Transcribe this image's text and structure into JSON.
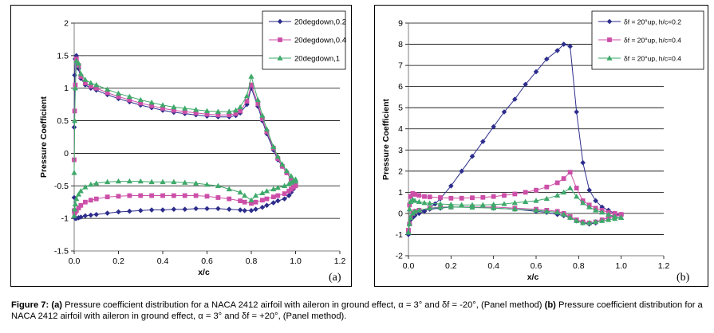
{
  "caption": {
    "label": "Figure 7:",
    "a_tag": "(a)",
    "a_text": " Pressure coefficient distribution for a NACA 2412 airfoil with aileron in ground effect, α = 3° and δf = -20°, (Panel method) ",
    "b_tag": "(b)",
    "b_text": " Pressure coefficient distribution for a NACA 2412 airfoil with aileron in ground effect, α = 3° and δf = +20°, (Panel method)."
  },
  "chart_data": [
    {
      "type": "line",
      "panel_label": "(a)",
      "xlabel": "x/c",
      "ylabel": "Pressure Coefficient",
      "xlim": [
        0,
        1.2
      ],
      "ylim": [
        -1.5,
        2
      ],
      "xticks": [
        "0.0",
        "0.2",
        "0.4",
        "0.6",
        "0.8",
        "1.0",
        "1.2"
      ],
      "yticks": [
        "-1.5",
        "-1",
        "-0.5",
        "0",
        "0.5",
        "1",
        "1.5",
        "2"
      ],
      "xtick_values": [
        0,
        0.2,
        0.4,
        0.6,
        0.8,
        1.0,
        1.2
      ],
      "ytick_values": [
        -1.5,
        -1,
        -0.5,
        0,
        0.5,
        1,
        1.5,
        2
      ],
      "grid": "horizontal",
      "legend": "top-right",
      "series": [
        {
          "name": "20degdown,0.2",
          "color": "#2d2d8c",
          "marker": "diamond",
          "x": [
            0.0,
            0.002,
            0.005,
            0.01,
            0.02,
            0.03,
            0.05,
            0.075,
            0.1,
            0.15,
            0.2,
            0.25,
            0.3,
            0.35,
            0.4,
            0.45,
            0.5,
            0.55,
            0.6,
            0.65,
            0.7,
            0.73,
            0.75,
            0.78,
            0.8,
            0.83,
            0.85,
            0.87,
            0.9,
            0.92,
            0.94,
            0.96,
            0.98,
            1.0,
            1.0,
            0.99,
            0.98,
            0.97,
            0.95,
            0.92,
            0.9,
            0.87,
            0.85,
            0.82,
            0.8,
            0.77,
            0.75,
            0.7,
            0.65,
            0.6,
            0.55,
            0.5,
            0.45,
            0.4,
            0.35,
            0.3,
            0.25,
            0.2,
            0.15,
            0.1,
            0.075,
            0.05,
            0.03,
            0.02,
            0.01,
            0.005,
            0.002,
            0.0
          ],
          "y": [
            0.4,
            1.2,
            1.45,
            1.5,
            1.3,
            1.15,
            1.05,
            1.0,
            0.97,
            0.9,
            0.84,
            0.79,
            0.74,
            0.7,
            0.66,
            0.63,
            0.61,
            0.59,
            0.57,
            0.56,
            0.56,
            0.58,
            0.62,
            0.75,
            1.0,
            0.72,
            0.5,
            0.3,
            0.05,
            -0.1,
            -0.2,
            -0.3,
            -0.4,
            -0.5,
            -0.48,
            -0.55,
            -0.6,
            -0.65,
            -0.7,
            -0.73,
            -0.76,
            -0.8,
            -0.83,
            -0.86,
            -0.88,
            -0.88,
            -0.87,
            -0.86,
            -0.85,
            -0.85,
            -0.85,
            -0.86,
            -0.86,
            -0.87,
            -0.87,
            -0.88,
            -0.89,
            -0.9,
            -0.92,
            -0.94,
            -0.95,
            -0.96,
            -0.98,
            -0.99,
            -1.0,
            -1.0,
            -0.98,
            -0.68
          ]
        },
        {
          "name": "20degdown,0.4",
          "color": "#cc4fa8",
          "marker": "square",
          "x": [
            0.0,
            0.002,
            0.005,
            0.01,
            0.02,
            0.03,
            0.05,
            0.075,
            0.1,
            0.15,
            0.2,
            0.25,
            0.3,
            0.35,
            0.4,
            0.45,
            0.5,
            0.55,
            0.6,
            0.65,
            0.7,
            0.73,
            0.75,
            0.78,
            0.8,
            0.83,
            0.85,
            0.87,
            0.9,
            0.92,
            0.94,
            0.96,
            0.98,
            1.0,
            1.0,
            0.99,
            0.98,
            0.97,
            0.95,
            0.92,
            0.9,
            0.87,
            0.85,
            0.82,
            0.8,
            0.77,
            0.75,
            0.7,
            0.65,
            0.6,
            0.55,
            0.5,
            0.45,
            0.4,
            0.35,
            0.3,
            0.25,
            0.2,
            0.15,
            0.1,
            0.075,
            0.05,
            0.03,
            0.02,
            0.01,
            0.005,
            0.002,
            0.0
          ],
          "y": [
            -0.1,
            0.65,
            1.05,
            1.45,
            1.35,
            1.18,
            1.08,
            1.03,
            1.0,
            0.93,
            0.87,
            0.82,
            0.77,
            0.73,
            0.69,
            0.66,
            0.64,
            0.62,
            0.6,
            0.59,
            0.59,
            0.61,
            0.65,
            0.8,
            1.05,
            0.76,
            0.53,
            0.33,
            0.08,
            -0.08,
            -0.2,
            -0.3,
            -0.4,
            -0.5,
            -0.47,
            -0.52,
            -0.55,
            -0.58,
            -0.62,
            -0.65,
            -0.67,
            -0.7,
            -0.72,
            -0.75,
            -0.77,
            -0.75,
            -0.73,
            -0.7,
            -0.68,
            -0.66,
            -0.65,
            -0.65,
            -0.65,
            -0.65,
            -0.65,
            -0.65,
            -0.65,
            -0.66,
            -0.67,
            -0.7,
            -0.72,
            -0.75,
            -0.8,
            -0.84,
            -0.88,
            -0.9,
            -0.92,
            -0.88
          ]
        },
        {
          "name": "20degdown,1",
          "color": "#3ea96a",
          "marker": "triangle",
          "x": [
            0.0,
            0.002,
            0.005,
            0.01,
            0.02,
            0.03,
            0.05,
            0.075,
            0.1,
            0.15,
            0.2,
            0.25,
            0.3,
            0.35,
            0.4,
            0.45,
            0.5,
            0.55,
            0.6,
            0.65,
            0.7,
            0.73,
            0.75,
            0.78,
            0.8,
            0.83,
            0.85,
            0.87,
            0.9,
            0.92,
            0.94,
            0.96,
            0.98,
            1.0,
            1.0,
            0.99,
            0.98,
            0.97,
            0.95,
            0.92,
            0.9,
            0.87,
            0.85,
            0.82,
            0.8,
            0.77,
            0.75,
            0.7,
            0.65,
            0.6,
            0.55,
            0.5,
            0.45,
            0.4,
            0.35,
            0.3,
            0.25,
            0.2,
            0.15,
            0.1,
            0.075,
            0.05,
            0.03,
            0.02,
            0.01,
            0.005,
            0.002,
            0.0
          ],
          "y": [
            -0.3,
            0.5,
            1.0,
            1.42,
            1.38,
            1.22,
            1.13,
            1.08,
            1.05,
            0.98,
            0.92,
            0.87,
            0.82,
            0.78,
            0.74,
            0.71,
            0.69,
            0.67,
            0.65,
            0.64,
            0.64,
            0.66,
            0.71,
            0.88,
            1.18,
            0.82,
            0.58,
            0.37,
            0.1,
            -0.05,
            -0.17,
            -0.27,
            -0.35,
            -0.43,
            -0.4,
            -0.43,
            -0.45,
            -0.47,
            -0.5,
            -0.53,
            -0.55,
            -0.58,
            -0.61,
            -0.65,
            -0.72,
            -0.65,
            -0.6,
            -0.55,
            -0.5,
            -0.48,
            -0.46,
            -0.45,
            -0.44,
            -0.44,
            -0.44,
            -0.43,
            -0.43,
            -0.43,
            -0.44,
            -0.46,
            -0.48,
            -0.52,
            -0.58,
            -0.63,
            -0.7,
            -0.78,
            -0.86,
            -0.96
          ]
        }
      ]
    },
    {
      "type": "line",
      "panel_label": "(b)",
      "xlabel": "x/c",
      "ylabel": "Pressure Coefficient",
      "xlim": [
        0,
        1.2
      ],
      "ylim": [
        -2,
        9
      ],
      "xticks": [
        "0.0",
        "0.2",
        "0.4",
        "0.6",
        "0.8",
        "1.0",
        "1.2"
      ],
      "yticks": [
        "-2",
        "-1",
        "0",
        "1",
        "2",
        "3",
        "4",
        "5",
        "6",
        "7",
        "8",
        "9"
      ],
      "xtick_values": [
        0,
        0.2,
        0.4,
        0.6,
        0.8,
        1.0,
        1.2
      ],
      "ytick_values": [
        -2,
        -1,
        0,
        1,
        2,
        3,
        4,
        5,
        6,
        7,
        8,
        9
      ],
      "grid": "horizontal",
      "legend": "top-right",
      "series": [
        {
          "name": "δf = 20°up, h/c=0.2",
          "color": "#2d2d8c",
          "marker": "diamond",
          "x": [
            0.0,
            0.005,
            0.01,
            0.02,
            0.03,
            0.05,
            0.075,
            0.1,
            0.125,
            0.15,
            0.2,
            0.25,
            0.3,
            0.35,
            0.4,
            0.45,
            0.5,
            0.55,
            0.6,
            0.65,
            0.7,
            0.73,
            0.76,
            0.79,
            0.82,
            0.85,
            0.88,
            0.91,
            0.94,
            0.97,
            1.0,
            1.0,
            0.97,
            0.94,
            0.91,
            0.88,
            0.85,
            0.82,
            0.79,
            0.76,
            0.73,
            0.7,
            0.65,
            0.6,
            0.5,
            0.4,
            0.3,
            0.2,
            0.15,
            0.1,
            0.05,
            0.03,
            0.02,
            0.01,
            0.005,
            0.0
          ],
          "y": [
            -1.0,
            -0.5,
            -0.3,
            -0.2,
            -0.1,
            0.0,
            0.1,
            0.25,
            0.45,
            0.7,
            1.3,
            2.0,
            2.7,
            3.4,
            4.1,
            4.8,
            5.4,
            6.1,
            6.7,
            7.3,
            7.7,
            8.0,
            7.9,
            4.8,
            2.4,
            1.1,
            0.6,
            0.3,
            0.15,
            0.0,
            -0.1,
            -0.05,
            -0.1,
            -0.2,
            -0.3,
            -0.45,
            -0.5,
            -0.45,
            -0.35,
            -0.2,
            -0.1,
            -0.05,
            0.05,
            0.1,
            0.2,
            0.25,
            0.3,
            0.3,
            0.25,
            0.2,
            0.1,
            0.05,
            0.0,
            -0.2,
            -0.5,
            -0.9
          ]
        },
        {
          "name": "δf = 20°up, h/c=0.4",
          "color": "#cc4fa8",
          "marker": "square",
          "x": [
            0.0,
            0.005,
            0.01,
            0.02,
            0.03,
            0.05,
            0.075,
            0.1,
            0.15,
            0.2,
            0.25,
            0.3,
            0.35,
            0.4,
            0.45,
            0.5,
            0.55,
            0.6,
            0.65,
            0.7,
            0.73,
            0.76,
            0.79,
            0.82,
            0.85,
            0.88,
            0.91,
            0.94,
            0.97,
            1.0,
            1.0,
            0.97,
            0.94,
            0.91,
            0.88,
            0.85,
            0.82,
            0.79,
            0.76,
            0.73,
            0.7,
            0.65,
            0.6,
            0.5,
            0.4,
            0.3,
            0.2,
            0.15,
            0.1,
            0.05,
            0.03,
            0.02,
            0.01,
            0.005,
            0.0
          ],
          "y": [
            -0.8,
            0.4,
            0.8,
            0.95,
            0.9,
            0.85,
            0.8,
            0.78,
            0.75,
            0.72,
            0.72,
            0.74,
            0.76,
            0.8,
            0.85,
            0.92,
            1.0,
            1.1,
            1.25,
            1.45,
            1.65,
            1.95,
            1.2,
            0.6,
            0.4,
            0.25,
            0.15,
            0.05,
            0.0,
            -0.05,
            -0.05,
            -0.15,
            -0.2,
            -0.3,
            -0.4,
            -0.45,
            -0.4,
            -0.3,
            -0.15,
            0.0,
            0.1,
            0.15,
            0.2,
            0.25,
            0.3,
            0.3,
            0.3,
            0.3,
            0.25,
            0.15,
            0.1,
            0.0,
            -0.2,
            -0.5,
            -0.8
          ]
        },
        {
          "name": "δf = 20°up, h/c=0.4",
          "color": "#3ea96a",
          "marker": "triangle",
          "x": [
            0.0,
            0.005,
            0.01,
            0.02,
            0.03,
            0.05,
            0.075,
            0.1,
            0.15,
            0.2,
            0.25,
            0.3,
            0.35,
            0.4,
            0.45,
            0.5,
            0.55,
            0.6,
            0.65,
            0.7,
            0.73,
            0.76,
            0.79,
            0.82,
            0.85,
            0.88,
            0.91,
            0.94,
            0.97,
            1.0,
            1.0,
            0.97,
            0.94,
            0.91,
            0.88,
            0.85,
            0.82,
            0.79,
            0.76,
            0.73,
            0.7,
            0.65,
            0.6,
            0.5,
            0.4,
            0.3,
            0.2,
            0.15,
            0.1,
            0.05,
            0.03,
            0.02,
            0.01,
            0.005,
            0.0
          ],
          "y": [
            -0.9,
            0.2,
            0.55,
            0.65,
            0.6,
            0.55,
            0.5,
            0.48,
            0.45,
            0.42,
            0.4,
            0.4,
            0.4,
            0.42,
            0.45,
            0.5,
            0.55,
            0.6,
            0.7,
            0.85,
            1.0,
            1.2,
            0.8,
            0.5,
            0.3,
            0.15,
            0.05,
            -0.05,
            -0.15,
            -0.2,
            -0.2,
            -0.25,
            -0.3,
            -0.35,
            -0.4,
            -0.45,
            -0.45,
            -0.35,
            -0.2,
            -0.05,
            0.05,
            0.1,
            0.15,
            0.2,
            0.25,
            0.28,
            0.3,
            0.28,
            0.25,
            0.15,
            0.1,
            0.0,
            -0.2,
            -0.5,
            -0.9
          ]
        }
      ]
    }
  ]
}
